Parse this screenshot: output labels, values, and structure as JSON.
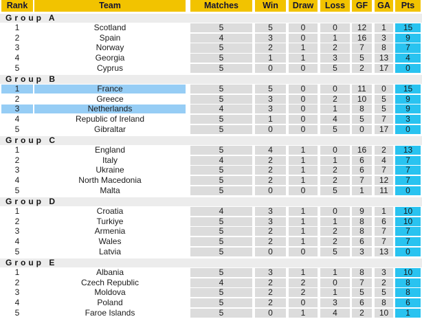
{
  "colors": {
    "header_bg": "#F2C300",
    "header_text": "#141432",
    "group_row_bg": "#ECECEC",
    "numeric_cell_bg": "#DCDCDC",
    "pts_cell_bg": "#29C3F0",
    "highlight_row_bg": "#96CDF5",
    "row_text": "#1A1A1A"
  },
  "chart_data": {
    "type": "table",
    "columns": [
      "Rank",
      "Team",
      "Matches",
      "Win",
      "Draw",
      "Loss",
      "GF",
      "GA",
      "Pts"
    ],
    "groups": [
      {
        "label": "Group A",
        "rows": [
          {
            "rank": "1",
            "team": "Scotland",
            "matches": "5",
            "win": "5",
            "draw": "0",
            "loss": "0",
            "gf": "12",
            "ga": "1",
            "pts": "15",
            "highlighted": false
          },
          {
            "rank": "2",
            "team": "Spain",
            "matches": "4",
            "win": "3",
            "draw": "0",
            "loss": "1",
            "gf": "16",
            "ga": "3",
            "pts": "9",
            "highlighted": false
          },
          {
            "rank": "3",
            "team": "Norway",
            "matches": "5",
            "win": "2",
            "draw": "1",
            "loss": "2",
            "gf": "7",
            "ga": "8",
            "pts": "7",
            "highlighted": false
          },
          {
            "rank": "4",
            "team": "Georgia",
            "matches": "5",
            "win": "1",
            "draw": "1",
            "loss": "3",
            "gf": "5",
            "ga": "13",
            "pts": "4",
            "highlighted": false
          },
          {
            "rank": "5",
            "team": "Cyprus",
            "matches": "5",
            "win": "0",
            "draw": "0",
            "loss": "5",
            "gf": "2",
            "ga": "17",
            "pts": "0",
            "highlighted": false
          }
        ]
      },
      {
        "label": "Group B",
        "rows": [
          {
            "rank": "1",
            "team": "France",
            "matches": "5",
            "win": "5",
            "draw": "0",
            "loss": "0",
            "gf": "11",
            "ga": "0",
            "pts": "15",
            "highlighted": true
          },
          {
            "rank": "2",
            "team": "Greece",
            "matches": "5",
            "win": "3",
            "draw": "0",
            "loss": "2",
            "gf": "10",
            "ga": "5",
            "pts": "9",
            "highlighted": false
          },
          {
            "rank": "3",
            "team": "Netherlands",
            "matches": "4",
            "win": "3",
            "draw": "0",
            "loss": "1",
            "gf": "8",
            "ga": "5",
            "pts": "9",
            "highlighted": true
          },
          {
            "rank": "4",
            "team": "Republic of Ireland",
            "matches": "5",
            "win": "1",
            "draw": "0",
            "loss": "4",
            "gf": "5",
            "ga": "7",
            "pts": "3",
            "highlighted": false
          },
          {
            "rank": "5",
            "team": "Gibraltar",
            "matches": "5",
            "win": "0",
            "draw": "0",
            "loss": "5",
            "gf": "0",
            "ga": "17",
            "pts": "0",
            "highlighted": false
          }
        ]
      },
      {
        "label": "Group C",
        "rows": [
          {
            "rank": "1",
            "team": "England",
            "matches": "5",
            "win": "4",
            "draw": "1",
            "loss": "0",
            "gf": "16",
            "ga": "2",
            "pts": "13",
            "highlighted": false
          },
          {
            "rank": "2",
            "team": "Italy",
            "matches": "4",
            "win": "2",
            "draw": "1",
            "loss": "1",
            "gf": "6",
            "ga": "4",
            "pts": "7",
            "highlighted": false
          },
          {
            "rank": "3",
            "team": "Ukraine",
            "matches": "5",
            "win": "2",
            "draw": "1",
            "loss": "2",
            "gf": "6",
            "ga": "7",
            "pts": "7",
            "highlighted": false
          },
          {
            "rank": "4",
            "team": "North Macedonia",
            "matches": "5",
            "win": "2",
            "draw": "1",
            "loss": "2",
            "gf": "7",
            "ga": "12",
            "pts": "7",
            "highlighted": false
          },
          {
            "rank": "5",
            "team": "Malta",
            "matches": "5",
            "win": "0",
            "draw": "0",
            "loss": "5",
            "gf": "1",
            "ga": "11",
            "pts": "0",
            "highlighted": false
          }
        ]
      },
      {
        "label": "Group D",
        "rows": [
          {
            "rank": "1",
            "team": "Croatia",
            "matches": "4",
            "win": "3",
            "draw": "1",
            "loss": "0",
            "gf": "9",
            "ga": "1",
            "pts": "10",
            "highlighted": false
          },
          {
            "rank": "2",
            "team": "Turkiye",
            "matches": "5",
            "win": "3",
            "draw": "1",
            "loss": "1",
            "gf": "8",
            "ga": "6",
            "pts": "10",
            "highlighted": false
          },
          {
            "rank": "3",
            "team": "Armenia",
            "matches": "5",
            "win": "2",
            "draw": "1",
            "loss": "2",
            "gf": "8",
            "ga": "7",
            "pts": "7",
            "highlighted": false
          },
          {
            "rank": "4",
            "team": "Wales",
            "matches": "5",
            "win": "2",
            "draw": "1",
            "loss": "2",
            "gf": "6",
            "ga": "7",
            "pts": "7",
            "highlighted": false
          },
          {
            "rank": "5",
            "team": "Latvia",
            "matches": "5",
            "win": "0",
            "draw": "0",
            "loss": "5",
            "gf": "3",
            "ga": "13",
            "pts": "0",
            "highlighted": false
          }
        ]
      },
      {
        "label": "Group E",
        "rows": [
          {
            "rank": "1",
            "team": "Albania",
            "matches": "5",
            "win": "3",
            "draw": "1",
            "loss": "1",
            "gf": "8",
            "ga": "3",
            "pts": "10",
            "highlighted": false
          },
          {
            "rank": "2",
            "team": "Czech Republic",
            "matches": "4",
            "win": "2",
            "draw": "2",
            "loss": "0",
            "gf": "7",
            "ga": "2",
            "pts": "8",
            "highlighted": false
          },
          {
            "rank": "3",
            "team": "Moldova",
            "matches": "5",
            "win": "2",
            "draw": "2",
            "loss": "1",
            "gf": "5",
            "ga": "5",
            "pts": "8",
            "highlighted": false
          },
          {
            "rank": "4",
            "team": "Poland",
            "matches": "5",
            "win": "2",
            "draw": "0",
            "loss": "3",
            "gf": "6",
            "ga": "8",
            "pts": "6",
            "highlighted": false
          },
          {
            "rank": "5",
            "team": "Faroe Islands",
            "matches": "5",
            "win": "0",
            "draw": "1",
            "loss": "4",
            "gf": "2",
            "ga": "10",
            "pts": "1",
            "highlighted": false
          }
        ]
      }
    ]
  }
}
